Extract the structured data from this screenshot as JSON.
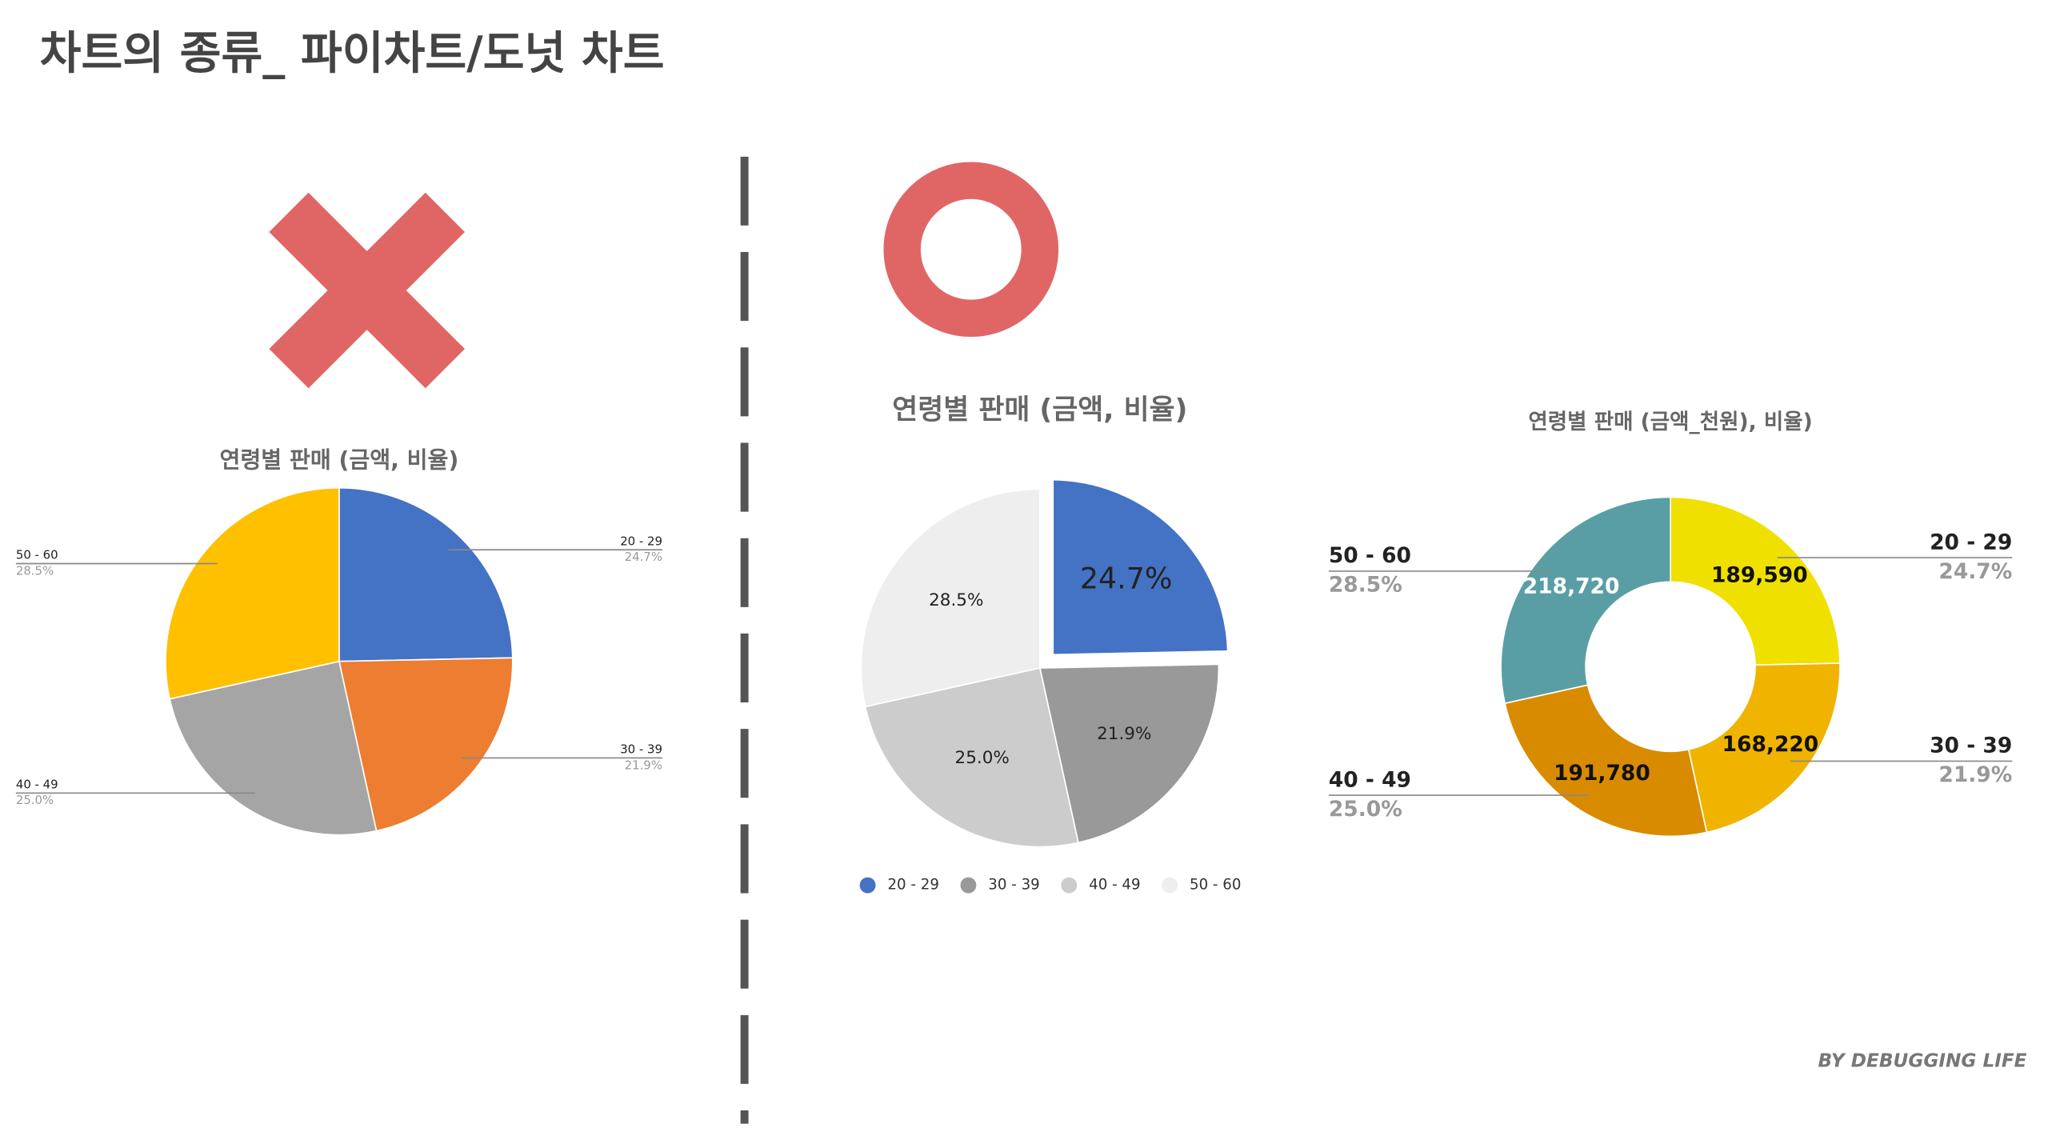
{
  "title": "차트의 종류_ 파이차트/도넛 차트",
  "footer": "BY DEBUGGING LIFE",
  "chart_data": [
    {
      "type": "pie",
      "title": "연령별 판매 (금액, 비율)",
      "categories": [
        "20 - 29",
        "30 - 39",
        "40 - 49",
        "50 - 60"
      ],
      "values": [
        24.7,
        21.9,
        25.0,
        28.5
      ],
      "value_labels": [
        "24.7%",
        "21.9%",
        "25.0%",
        "28.5%"
      ],
      "colors": [
        "#4472c4",
        "#ed7d31",
        "#a5a5a5",
        "#ffc000"
      ]
    },
    {
      "type": "pie",
      "title": "연령별 판매 (금액, 비율)",
      "categories": [
        "20 - 29",
        "30 - 39",
        "40 - 49",
        "50 - 60"
      ],
      "values": [
        24.7,
        21.9,
        25.0,
        28.5
      ],
      "value_labels": [
        "24.7%",
        "21.9%",
        "25.0%",
        "28.5%"
      ],
      "colors": [
        "#4472c4",
        "#999999",
        "#cccccc",
        "#eeeeee"
      ],
      "exploded": 0,
      "legend": "bottom"
    },
    {
      "type": "donut",
      "title": "연령별 판매 (금액_천원), 비율)",
      "categories": [
        "20 - 29",
        "30 - 39",
        "40 - 49",
        "50 - 60"
      ],
      "values": [
        189590,
        168220,
        191780,
        218720
      ],
      "value_labels": [
        "189,590",
        "168,220",
        "191,780",
        "218,720"
      ],
      "shares": [
        24.7,
        21.9,
        25.0,
        28.5
      ],
      "share_labels": [
        "24.7%",
        "21.9%",
        "25.0%",
        "28.5%"
      ],
      "colors": [
        "#f0e000",
        "#f0b400",
        "#d98b00",
        "#5a9ea5"
      ]
    }
  ]
}
